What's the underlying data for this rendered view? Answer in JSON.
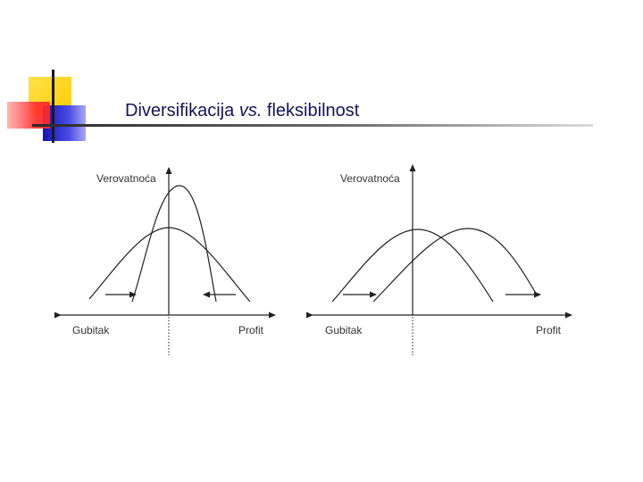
{
  "slide": {
    "title_part1": "Diversifikacija ",
    "title_part2": "vs.",
    "title_part3": " fleksibilnost"
  },
  "panels": [
    {
      "y_axis_label": "Verovatnoća",
      "x_left_label": "Gubitak",
      "x_right_label": "Profit"
    },
    {
      "y_axis_label": "Verovatnoća",
      "x_left_label": "Gubitak",
      "x_right_label": "Profit"
    }
  ],
  "colors": {
    "logo_yellow": "#ffd21e",
    "logo_red": "#ff3b3b",
    "logo_blue": "#2626c8",
    "title_text": "#14145a",
    "line": "#222222"
  }
}
